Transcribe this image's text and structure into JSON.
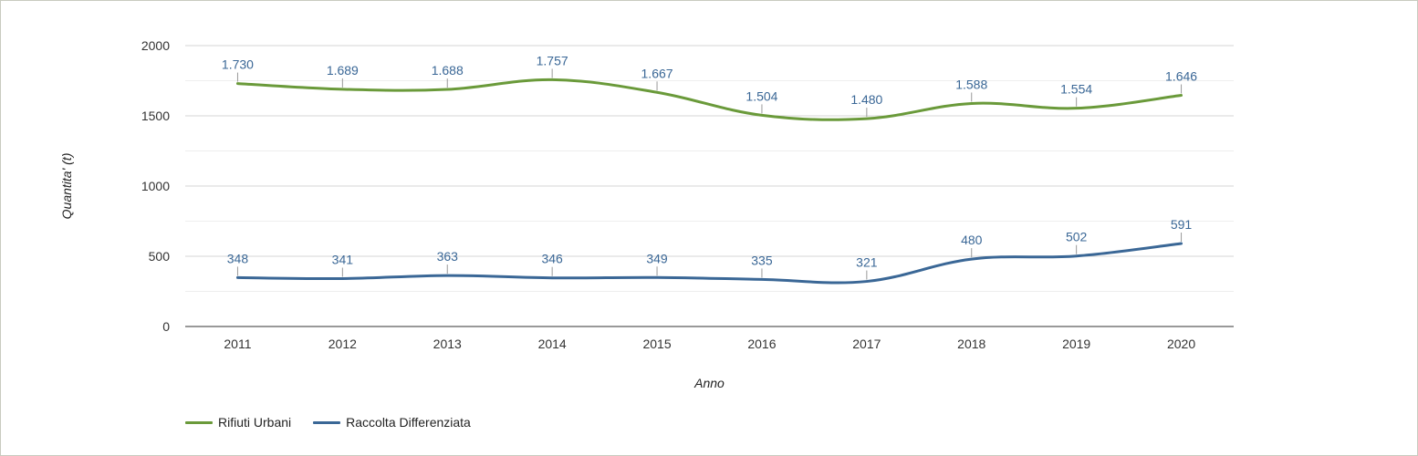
{
  "chart_data": {
    "type": "line",
    "x": [
      "2011",
      "2012",
      "2013",
      "2014",
      "2015",
      "2016",
      "2017",
      "2018",
      "2019",
      "2020"
    ],
    "xlabel": "Anno",
    "ylabel": "Quantita' (t)",
    "ylim": [
      0,
      2000
    ],
    "yticks": [
      0,
      500,
      1000,
      1500,
      2000
    ],
    "grid": true,
    "legend_position": "bottom-left",
    "series": [
      {
        "name": "Rifiuti Urbani",
        "color": "#6a9a3a",
        "values": [
          1730,
          1689,
          1688,
          1757,
          1667,
          1504,
          1480,
          1588,
          1554,
          1646
        ],
        "labels": [
          "1.730",
          "1.689",
          "1.688",
          "1.757",
          "1.667",
          "1.504",
          "1.480",
          "1.588",
          "1.554",
          "1.646"
        ]
      },
      {
        "name": "Raccolta Differenziata",
        "color": "#3a6796",
        "values": [
          348,
          341,
          363,
          346,
          349,
          335,
          321,
          480,
          502,
          591
        ],
        "labels": [
          "348",
          "341",
          "363",
          "346",
          "349",
          "335",
          "321",
          "480",
          "502",
          "591"
        ]
      }
    ],
    "label_color": "#3a6796"
  }
}
